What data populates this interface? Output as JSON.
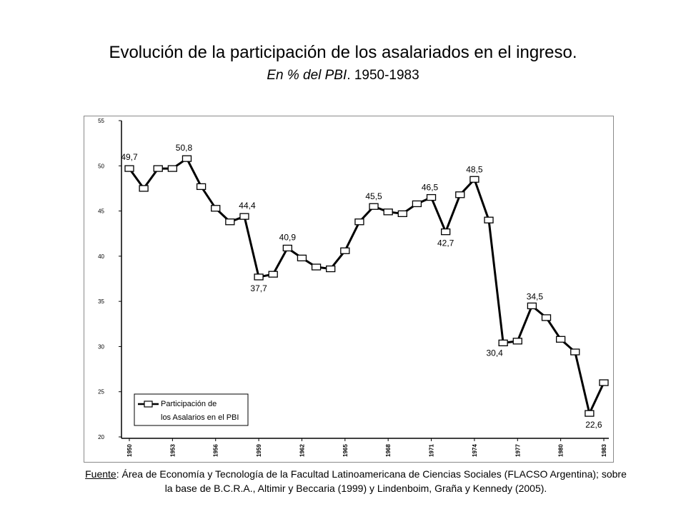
{
  "chart_data": {
    "type": "line",
    "title": "Evolución de la participación de los asalariados en el ingreso.",
    "subtitle_italic": "En % del PBI",
    "subtitle_rest": ". 1950-1983",
    "x": [
      1950,
      1951,
      1952,
      1953,
      1954,
      1955,
      1956,
      1957,
      1958,
      1959,
      1960,
      1961,
      1962,
      1963,
      1964,
      1965,
      1966,
      1967,
      1968,
      1969,
      1970,
      1971,
      1972,
      1973,
      1974,
      1975,
      1976,
      1977,
      1978,
      1979,
      1980,
      1981,
      1982,
      1983
    ],
    "series": [
      {
        "name": "Participación de los Asalarios en el PBI",
        "values": [
          49.7,
          47.5,
          49.7,
          49.7,
          50.8,
          47.7,
          45.3,
          43.8,
          44.4,
          37.7,
          38.0,
          40.9,
          39.8,
          38.8,
          38.6,
          40.6,
          43.8,
          45.5,
          44.9,
          44.7,
          45.8,
          46.5,
          42.7,
          46.8,
          48.5,
          44.0,
          30.4,
          30.6,
          34.5,
          33.2,
          30.8,
          29.4,
          22.6,
          26.0
        ]
      }
    ],
    "ylim": [
      20,
      55
    ],
    "yticks": [
      "20",
      "25",
      "30",
      "35",
      "40",
      "45",
      "50",
      "55"
    ],
    "xticks": [
      "1950",
      "1953",
      "1956",
      "1959",
      "1962",
      "1965",
      "1968",
      "1971",
      "1974",
      "1977",
      "1980",
      "1983"
    ],
    "annotations": [
      {
        "year": 1950,
        "text": "49,7"
      },
      {
        "year": 1954,
        "text": "50,8"
      },
      {
        "year": 1958,
        "text": "44,4"
      },
      {
        "year": 1959,
        "text": "37,7"
      },
      {
        "year": 1961,
        "text": "40,9"
      },
      {
        "year": 1967,
        "text": "45,5"
      },
      {
        "year": 1971,
        "text": "46,5"
      },
      {
        "year": 1972,
        "text": "42,7"
      },
      {
        "year": 1974,
        "text": "48,5"
      },
      {
        "year": 1976,
        "text": "30,4"
      },
      {
        "year": 1978,
        "text": "34,5"
      },
      {
        "year": 1982,
        "text": "22,6"
      }
    ],
    "legend": {
      "line1": "Participación de",
      "line2": "los Asalarios en el PBI",
      "placement": "bottom-left"
    },
    "grid": false
  },
  "source": {
    "label": "Fuente",
    "text": ": Área de Economía y Tecnología de la Facultad Latinoamericana de Ciencias Sociales (FLACSO Argentina); sobre la base de B.C.R.A., Altimir y Beccaria (1999) y Lindenboim, Graña y Kennedy (2005)."
  }
}
